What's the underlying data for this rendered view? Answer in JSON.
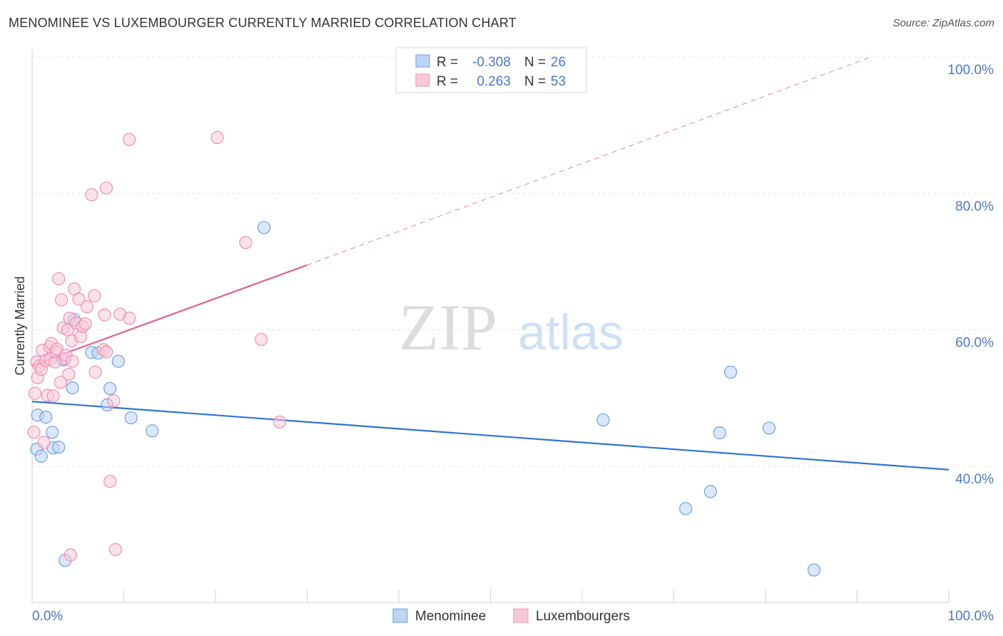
{
  "title": "MENOMINEE VS LUXEMBOURGER CURRENTLY MARRIED CORRELATION CHART",
  "source": "Source: ZipAtlas.com",
  "watermark": {
    "zip": "ZIP",
    "atlas": "atlas"
  },
  "chart_data": {
    "type": "scatter",
    "title": "MENOMINEE VS LUXEMBOURGER CURRENTLY MARRIED CORRELATION CHART",
    "xlabel": "",
    "ylabel": "Currently Married",
    "xlim": [
      0,
      100
    ],
    "ylim": [
      20,
      102
    ],
    "x_tick_labels": [
      "0.0%",
      "100.0%"
    ],
    "y_ticks": [
      40,
      60,
      80,
      100
    ],
    "y_tick_labels": [
      "40.0%",
      "60.0%",
      "80.0%",
      "100.0%"
    ],
    "grid": true,
    "legend_position": "top-center",
    "stats": [
      {
        "r_label": "R =",
        "r_value": "-0.308",
        "n_label": "N =",
        "n_value": "26"
      },
      {
        "r_label": "R =",
        "r_value": "0.263",
        "n_label": "N =",
        "n_value": "53"
      }
    ],
    "series": [
      {
        "name": "Menominee",
        "color": "#6fa0e0",
        "fill": "#bdd4f5",
        "trend": {
          "x": [
            0,
            100
          ],
          "y": [
            49.5,
            39.5
          ],
          "color": "#2f74d0"
        },
        "points": [
          {
            "x": 0.5,
            "y": 42.5
          },
          {
            "x": 1.0,
            "y": 41.5
          },
          {
            "x": 0.6,
            "y": 47.5
          },
          {
            "x": 1.5,
            "y": 47.2
          },
          {
            "x": 2.2,
            "y": 45.0
          },
          {
            "x": 2.3,
            "y": 42.7
          },
          {
            "x": 2.9,
            "y": 42.8
          },
          {
            "x": 3.4,
            "y": 55.6
          },
          {
            "x": 4.4,
            "y": 51.5
          },
          {
            "x": 4.6,
            "y": 61.5
          },
          {
            "x": 6.5,
            "y": 56.7
          },
          {
            "x": 7.2,
            "y": 56.6
          },
          {
            "x": 8.2,
            "y": 49.0
          },
          {
            "x": 8.5,
            "y": 51.4
          },
          {
            "x": 9.4,
            "y": 55.4
          },
          {
            "x": 10.8,
            "y": 47.1
          },
          {
            "x": 13.1,
            "y": 45.2
          },
          {
            "x": 3.6,
            "y": 26.2
          },
          {
            "x": 25.3,
            "y": 75.0
          },
          {
            "x": 62.3,
            "y": 46.8
          },
          {
            "x": 71.3,
            "y": 33.8
          },
          {
            "x": 74.0,
            "y": 36.3
          },
          {
            "x": 75.0,
            "y": 44.9
          },
          {
            "x": 76.2,
            "y": 53.8
          },
          {
            "x": 80.4,
            "y": 45.6
          },
          {
            "x": 85.3,
            "y": 24.8
          }
        ]
      },
      {
        "name": "Luxembourgers",
        "color": "#f090b0",
        "fill": "#f8c8d8",
        "trend": {
          "x": [
            0,
            30
          ],
          "y": [
            54.8,
            69.5
          ],
          "color": "#e06090",
          "dashed_extension": {
            "x": [
              30,
              91.5
            ],
            "y": [
              69.5,
              100.0
            ]
          }
        },
        "points": [
          {
            "x": 0.2,
            "y": 45.0
          },
          {
            "x": 0.3,
            "y": 50.7
          },
          {
            "x": 0.5,
            "y": 55.3
          },
          {
            "x": 0.6,
            "y": 53.0
          },
          {
            "x": 0.8,
            "y": 54.7
          },
          {
            "x": 1.0,
            "y": 54.2
          },
          {
            "x": 1.1,
            "y": 57.0
          },
          {
            "x": 1.3,
            "y": 43.5
          },
          {
            "x": 1.5,
            "y": 55.5
          },
          {
            "x": 1.7,
            "y": 50.4
          },
          {
            "x": 1.9,
            "y": 57.5
          },
          {
            "x": 2.0,
            "y": 55.7
          },
          {
            "x": 2.1,
            "y": 58.0
          },
          {
            "x": 2.3,
            "y": 50.3
          },
          {
            "x": 2.5,
            "y": 55.3
          },
          {
            "x": 2.6,
            "y": 56.8
          },
          {
            "x": 2.7,
            "y": 57.2
          },
          {
            "x": 2.9,
            "y": 67.5
          },
          {
            "x": 3.1,
            "y": 52.3
          },
          {
            "x": 3.2,
            "y": 64.4
          },
          {
            "x": 3.4,
            "y": 60.3
          },
          {
            "x": 3.6,
            "y": 55.8
          },
          {
            "x": 3.7,
            "y": 56.3
          },
          {
            "x": 3.9,
            "y": 60.0
          },
          {
            "x": 4.0,
            "y": 53.5
          },
          {
            "x": 4.1,
            "y": 61.7
          },
          {
            "x": 4.3,
            "y": 58.4
          },
          {
            "x": 4.4,
            "y": 55.4
          },
          {
            "x": 4.6,
            "y": 66.0
          },
          {
            "x": 4.8,
            "y": 61.0
          },
          {
            "x": 5.1,
            "y": 64.5
          },
          {
            "x": 5.3,
            "y": 59.0
          },
          {
            "x": 5.5,
            "y": 60.5
          },
          {
            "x": 5.8,
            "y": 60.9
          },
          {
            "x": 6.0,
            "y": 63.4
          },
          {
            "x": 6.8,
            "y": 65.0
          },
          {
            "x": 6.9,
            "y": 53.8
          },
          {
            "x": 7.8,
            "y": 57.1
          },
          {
            "x": 7.9,
            "y": 62.2
          },
          {
            "x": 8.1,
            "y": 56.8
          },
          {
            "x": 8.5,
            "y": 37.8
          },
          {
            "x": 8.9,
            "y": 49.6
          },
          {
            "x": 9.1,
            "y": 27.8
          },
          {
            "x": 9.6,
            "y": 62.3
          },
          {
            "x": 10.6,
            "y": 61.7
          },
          {
            "x": 4.2,
            "y": 27.0
          },
          {
            "x": 6.5,
            "y": 79.8
          },
          {
            "x": 8.1,
            "y": 80.8
          },
          {
            "x": 10.6,
            "y": 87.9
          },
          {
            "x": 20.2,
            "y": 88.2
          },
          {
            "x": 23.3,
            "y": 72.8
          },
          {
            "x": 25.0,
            "y": 58.6
          },
          {
            "x": 27.0,
            "y": 46.5
          }
        ]
      }
    ]
  }
}
